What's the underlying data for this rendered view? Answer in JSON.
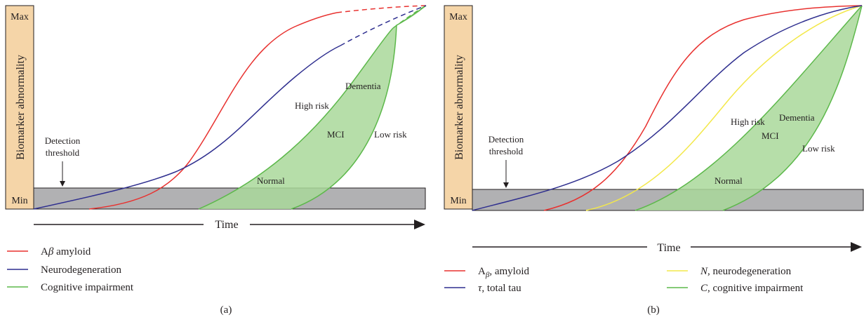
{
  "colors": {
    "amyloid": "#e8312f",
    "neuro": "#2f2f8f",
    "tau": "#2f2f8f",
    "n_neuro": "#f3e84a",
    "cognitive": "#5cb84a",
    "cognitive_fill": "#a9d89a",
    "threshold_band": "#b1b1b3",
    "y_label_bg": "#f5d5a8"
  },
  "panel_a": {
    "letter": "(a)",
    "y_axis": {
      "title": "Biomarker abnormality",
      "max": "Max",
      "min": "Min"
    },
    "x_axis": {
      "title": "Time"
    },
    "detection": {
      "line1": "Detection",
      "line2": "threshold"
    },
    "region_labels": {
      "dementia": "Dementia",
      "high_risk": "High risk",
      "mci": "MCI",
      "low_risk": "Low risk",
      "normal": "Normal"
    },
    "legend": [
      {
        "key": "amyloid",
        "pre": "A",
        "italic": "β",
        "post": " amyloid"
      },
      {
        "key": "neuro",
        "pre": "Neurodegeneration",
        "italic": "",
        "post": ""
      },
      {
        "key": "cognitive",
        "pre": "Cognitive impairment",
        "italic": "",
        "post": ""
      }
    ]
  },
  "panel_b": {
    "letter": "(b)",
    "y_axis": {
      "title": "Biomarker abnormality",
      "max": "Max",
      "min": "Min"
    },
    "x_axis": {
      "title": "Time"
    },
    "detection": {
      "line1": "Detection",
      "line2": "threshold"
    },
    "region_labels": {
      "dementia": "Dementia",
      "high_risk": "High risk",
      "mci": "MCI",
      "low_risk": "Low risk",
      "normal": "Normal"
    },
    "legend": [
      {
        "key": "amyloid",
        "pre": "A",
        "sub": "β",
        "post": ", amyloid"
      },
      {
        "key": "tau",
        "italic": "τ",
        "post": ", total tau"
      },
      {
        "key": "n_neuro",
        "italic": "N",
        "post": ", neurodegeneration"
      },
      {
        "key": "cognitive",
        "italic": "C",
        "post": ", cognitive impairment"
      }
    ]
  }
}
